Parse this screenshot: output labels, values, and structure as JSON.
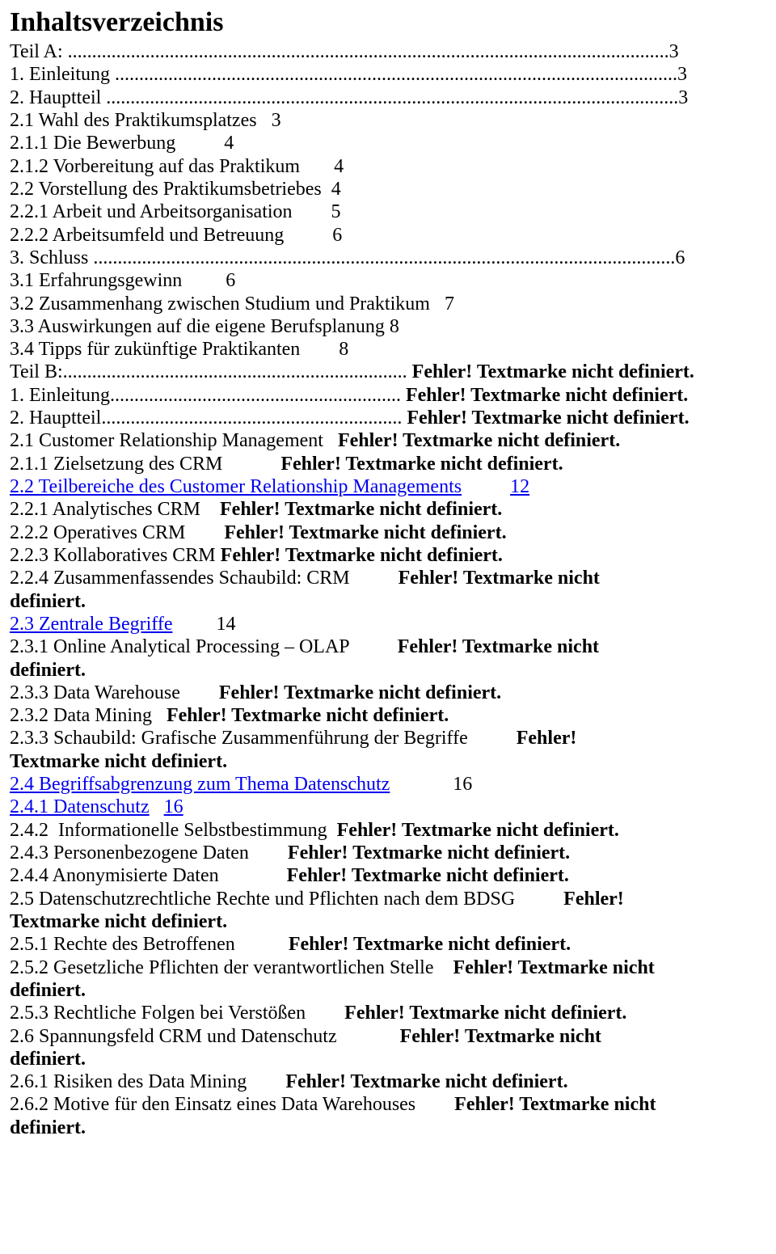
{
  "title": "Inhaltsverzeichnis",
  "err": "Fehler! Textmarke nicht definiert.",
  "errShort": "Fehler! Textmarke nicht",
  "def": "definiert.",
  "errOnly": "Fehler!",
  "tnd": "Textmarke nicht definiert.",
  "lines": {
    "l01": "Teil A: ............................................................................................................................3",
    "l02": "1. Einleitung ....................................................................................................................3",
    "l03": "2. Hauptteil ......................................................................................................................3",
    "l04": "2.1 Wahl des Praktikumsplatzes   3",
    "l05": "2.1.1 Die Bewerbung          4",
    "l06": "2.1.2 Vorbereitung auf das Praktikum       4",
    "l07": "2.2 Vorstellung des Praktikumsbetriebes  4",
    "l08": "2.2.1 Arbeit und Arbeitsorganisation        5",
    "l09": "2.2.2 Arbeitsumfeld und Betreuung          6",
    "l10": "3. Schluss ........................................................................................................................6",
    "l11": "3.1 Erfahrungsgewinn         6",
    "l12": "3.2 Zusammenhang zwischen Studium und Praktikum   7",
    "l13": "3.3 Auswirkungen auf die eigene Berufsplanung 8",
    "l14": "3.4 Tipps für zukünftige Praktikanten        8",
    "l15a": "Teil B:",
    "l15b": "....................................................................... ",
    "l16a": "1. Einleitung",
    "l16b": "............................................................ ",
    "l17a": "2. Hauptteil",
    "l17b": ".............................................................. ",
    "l18": "2.1 Customer Relationship Management   ",
    "l19": "2.1.1 Zielsetzung des CRM            ",
    "l20a": "2.2 Teilbereiche des Customer Relationship Managements",
    "l20b": "          ",
    "l20c": "12",
    "l21": "2.2.1 Analytisches CRM    ",
    "l22": "2.2.2 Operatives CRM        ",
    "l23": "2.2.3 Kollaboratives CRM ",
    "l24": "2.2.4 Zusammenfassendes Schaubild: CRM          ",
    "l25a": "2.3 Zentrale Begriffe",
    "l25b": "         14",
    "l26": "2.3.1 Online Analytical Processing – OLAP          ",
    "l27": "2.3.3 Data Warehouse        ",
    "l28": "2.3.2 Data Mining   ",
    "l29": "2.3.3 Schaubild: Grafische Zusammenführung der Begriffe          ",
    "l30a": "2.4 Begriffsabgrenzung zum Thema Datenschutz",
    "l30b": "             16",
    "l31a": "2.4.1 Datenschutz",
    "l31b": "   ",
    "l31c": "16",
    "l32": "2.4.2  Informationelle Selbstbestimmung  ",
    "l33": "2.4.3 Personenbezogene Daten        ",
    "l34": "2.4.4 Anonymisierte Daten              ",
    "l35": "2.5 Datenschutzrechtliche Rechte und Pflichten nach dem BDSG          ",
    "l36": "2.5.1 Rechte des Betroffenen           ",
    "l37": "2.5.2 Gesetzliche Pflichten der verantwortlichen Stelle    ",
    "l38": "2.5.3 Rechtliche Folgen bei Verstößen        ",
    "l39": "2.6 Spannungsfeld CRM und Datenschutz             ",
    "l40": "2.6.1 Risiken des Data Mining        ",
    "l41": "2.6.2 Motive für den Einsatz eines Data Warehouses        "
  }
}
